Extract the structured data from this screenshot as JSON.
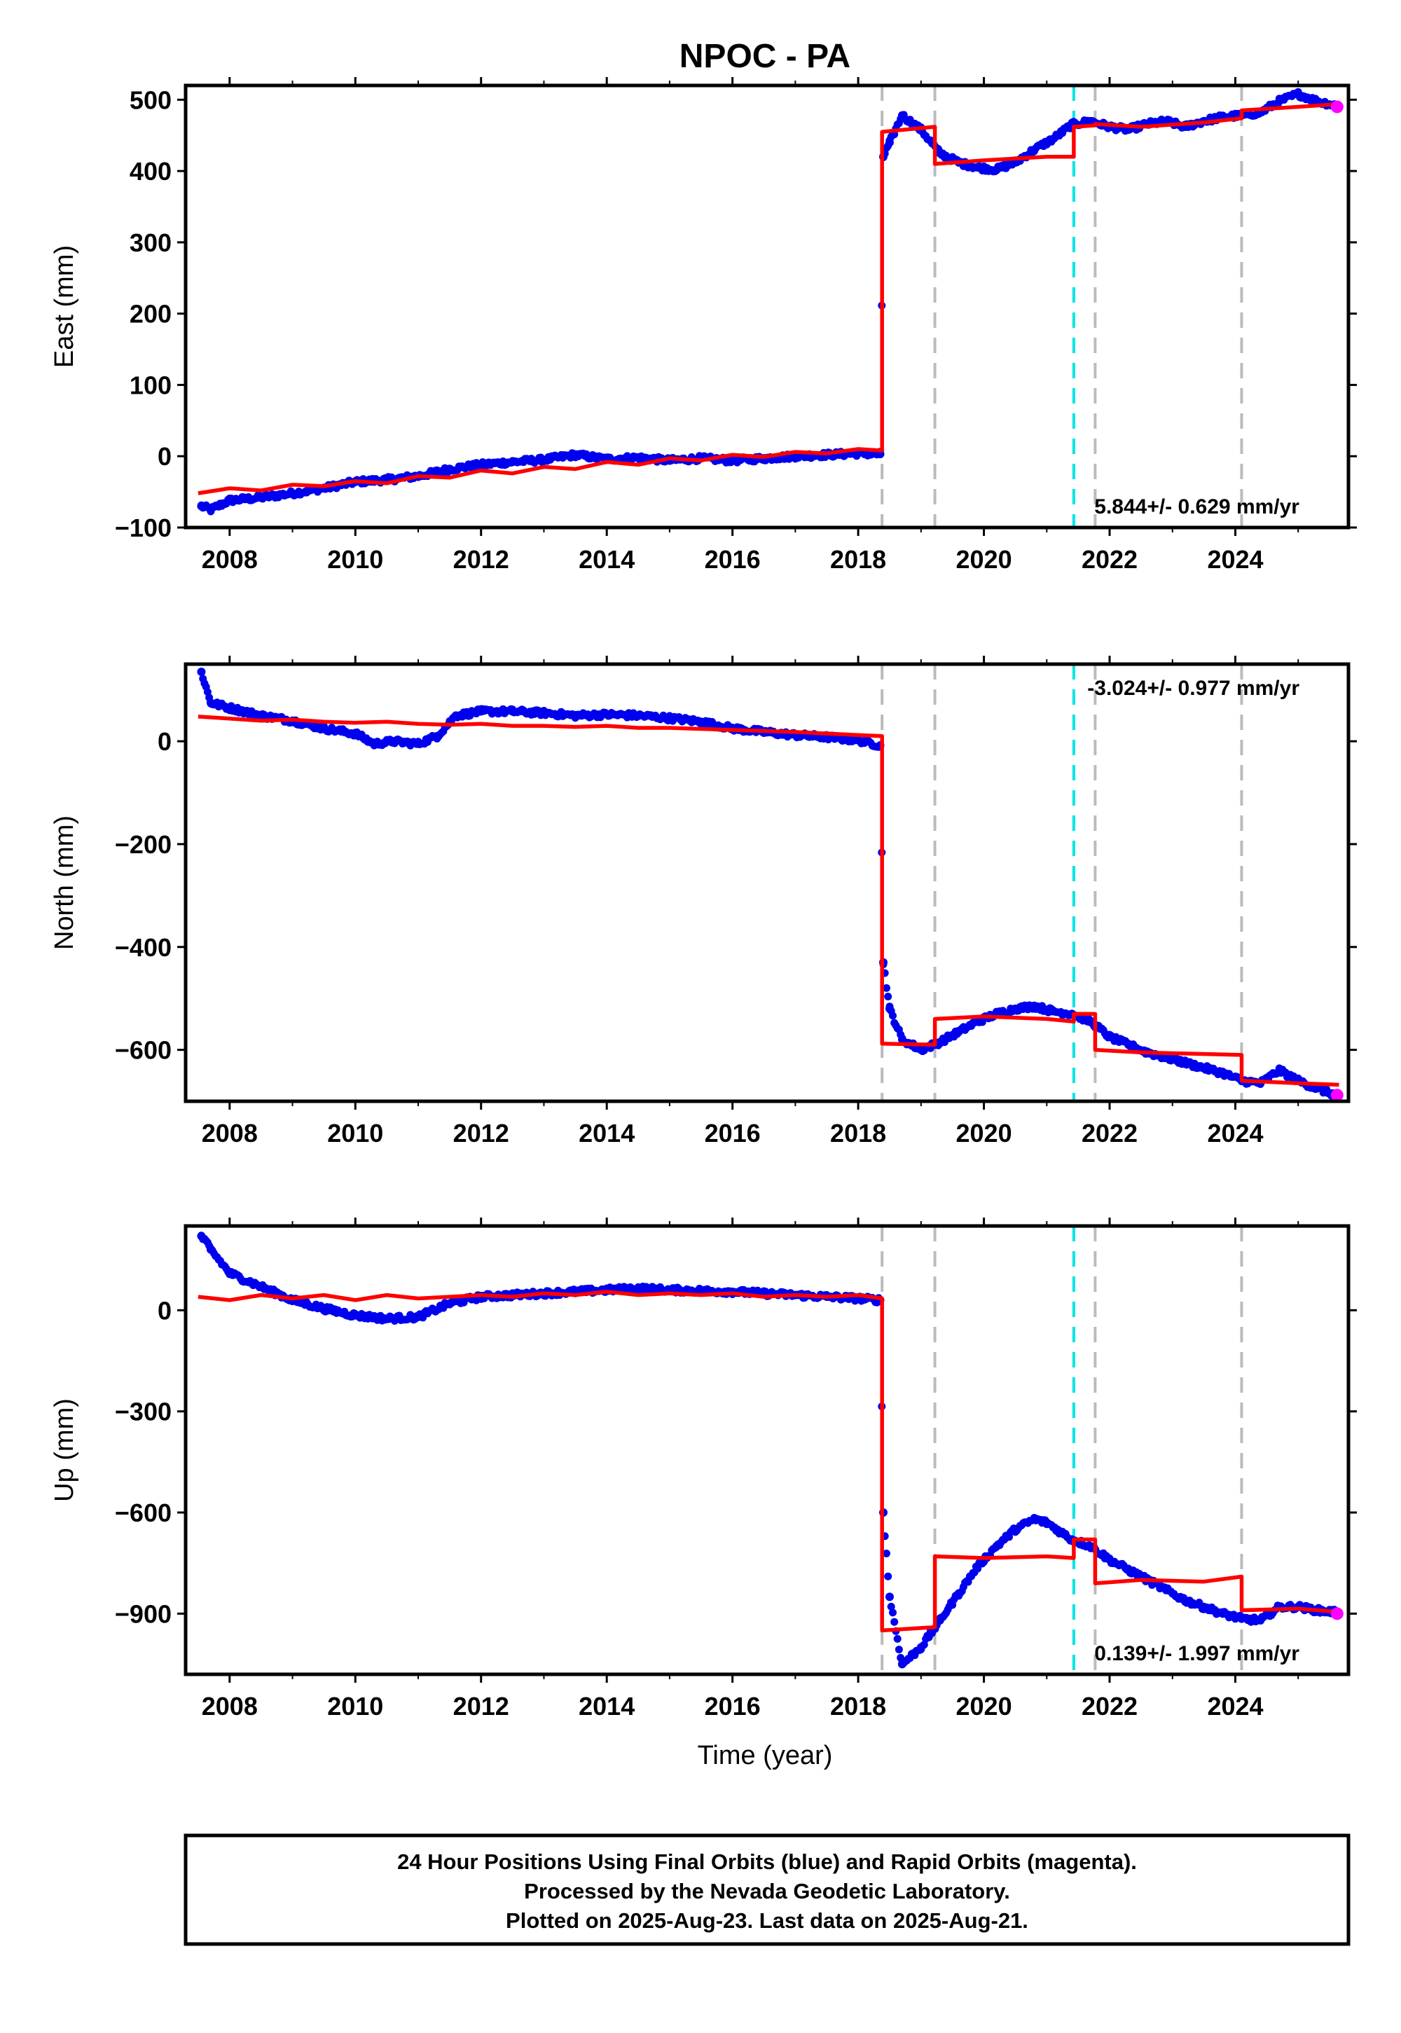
{
  "chart_data": {
    "title": "NPOC - PA",
    "type": "scatter",
    "x_label": "Time (year)",
    "x_ticks": [
      "2008",
      "2010",
      "2012",
      "2014",
      "2016",
      "2018",
      "2020",
      "2022",
      "2024"
    ],
    "x_tick_values": [
      2008,
      2010,
      2012,
      2014,
      2016,
      2018,
      2020,
      2022,
      2024
    ],
    "xlim": [
      2007.3,
      2025.8
    ],
    "event_lines": {
      "gray_dashed": [
        2018.38,
        2019.22,
        2021.77,
        2024.1
      ],
      "cyan_dashed": [
        2021.43
      ]
    },
    "colors": {
      "final_orbits": "#0000ee",
      "rapid_orbits": "#ff00ff",
      "model": "#ff0000",
      "equipment_change": "#bbbbbb",
      "earthquake": "#00e5e5"
    },
    "panels": [
      {
        "ylabel": "East (mm)",
        "ylim": [
          -100,
          520
        ],
        "y_tick_values": [
          -100,
          0,
          100,
          200,
          300,
          400,
          500
        ],
        "y_ticks": [
          "−100",
          "0",
          "100",
          "200",
          "300",
          "400",
          "500"
        ],
        "rate_text": "5.844+/- 0.629 mm/yr",
        "rate_position": "bottom-right",
        "final_orbits": {
          "x": [
            2007.55,
            2007.7,
            2008.0,
            2008.5,
            2009.0,
            2009.5,
            2010.0,
            2010.5,
            2011.0,
            2011.5,
            2012.0,
            2012.5,
            2013.0,
            2013.5,
            2014.0,
            2014.5,
            2015.0,
            2015.5,
            2016.0,
            2016.5,
            2017.0,
            2017.5,
            2018.0,
            2018.35,
            2018.4,
            2018.5,
            2018.7,
            2019.0,
            2019.3,
            2019.6,
            2019.9,
            2020.2,
            2020.5,
            2020.8,
            2021.1,
            2021.4,
            2021.7,
            2022.0,
            2022.3,
            2022.6,
            2022.9,
            2023.2,
            2023.5,
            2023.8,
            2024.1,
            2024.4,
            2024.7,
            2025.0,
            2025.3,
            2025.6
          ],
          "y": [
            -70,
            -75,
            -62,
            -58,
            -52,
            -45,
            -36,
            -33,
            -28,
            -18,
            -12,
            -8,
            -5,
            2,
            -4,
            -2,
            -6,
            -3,
            -6,
            -3,
            0,
            2,
            4,
            3,
            420,
            440,
            478,
            458,
            425,
            412,
            405,
            402,
            412,
            430,
            445,
            465,
            470,
            462,
            458,
            466,
            470,
            462,
            470,
            476,
            478,
            482,
            498,
            508,
            498,
            492
          ]
        },
        "rapid_orbits": {
          "x": [
            2025.62
          ],
          "y": [
            490
          ]
        },
        "model": {
          "x": [
            2007.5,
            2008.0,
            2008.5,
            2009.0,
            2009.5,
            2010.0,
            2010.5,
            2011.0,
            2011.5,
            2012.0,
            2012.5,
            2013.0,
            2013.5,
            2014.0,
            2014.5,
            2015.0,
            2015.5,
            2016.0,
            2016.5,
            2017.0,
            2017.5,
            2018.0,
            2018.38,
            2018.38,
            2019.22,
            2019.22,
            2020.0,
            2021.0,
            2021.43,
            2021.43,
            2021.77,
            2021.77,
            2022.5,
            2023.5,
            2024.1,
            2024.1,
            2025.0,
            2025.65
          ],
          "y": [
            -52,
            -45,
            -48,
            -40,
            -42,
            -35,
            -38,
            -28,
            -30,
            -20,
            -24,
            -15,
            -18,
            -8,
            -12,
            -3,
            -6,
            2,
            -1,
            6,
            4,
            10,
            8,
            455,
            462,
            410,
            415,
            420,
            420,
            462,
            464,
            466,
            462,
            468,
            474,
            485,
            490,
            494
          ]
        }
      },
      {
        "ylabel": "North (mm)",
        "ylim": [
          -700,
          150
        ],
        "y_tick_values": [
          -600,
          -400,
          -200,
          0
        ],
        "y_ticks": [
          "−600",
          "−400",
          "−200",
          "0"
        ],
        "rate_text": "-3.024+/- 0.977 mm/yr",
        "rate_position": "top-right",
        "final_orbits": {
          "x": [
            2007.55,
            2007.7,
            2008.0,
            2008.5,
            2009.0,
            2009.5,
            2010.0,
            2010.3,
            2010.6,
            2011.0,
            2011.3,
            2011.6,
            2012.0,
            2012.5,
            2013.0,
            2013.5,
            2014.0,
            2014.5,
            2015.0,
            2015.5,
            2016.0,
            2016.5,
            2017.0,
            2017.5,
            2018.0,
            2018.35,
            2018.4,
            2018.5,
            2018.7,
            2019.0,
            2019.3,
            2019.6,
            2019.9,
            2020.2,
            2020.5,
            2020.8,
            2021.1,
            2021.4,
            2021.7,
            2022.0,
            2022.3,
            2022.6,
            2022.9,
            2023.2,
            2023.5,
            2023.8,
            2024.1,
            2024.4,
            2024.7,
            2025.0,
            2025.3,
            2025.6
          ],
          "y": [
            135,
            75,
            65,
            50,
            40,
            25,
            15,
            -5,
            0,
            -5,
            10,
            50,
            58,
            58,
            55,
            50,
            52,
            50,
            45,
            38,
            25,
            18,
            12,
            8,
            2,
            -8,
            -430,
            -520,
            -580,
            -600,
            -585,
            -565,
            -545,
            -530,
            -520,
            -515,
            -525,
            -530,
            -545,
            -575,
            -590,
            -605,
            -615,
            -625,
            -635,
            -645,
            -660,
            -665,
            -640,
            -660,
            -675,
            -688
          ]
        },
        "rapid_orbits": {
          "x": [
            2025.62
          ],
          "y": [
            -688
          ]
        },
        "model": {
          "x": [
            2007.5,
            2008.0,
            2008.5,
            2009.0,
            2009.5,
            2010.0,
            2010.5,
            2011.0,
            2011.5,
            2012.0,
            2012.5,
            2013.0,
            2013.5,
            2014.0,
            2014.5,
            2015.0,
            2015.5,
            2016.0,
            2016.5,
            2017.0,
            2017.5,
            2018.0,
            2018.38,
            2018.38,
            2019.22,
            2019.22,
            2020.0,
            2021.0,
            2021.43,
            2021.43,
            2021.77,
            2021.77,
            2022.5,
            2023.5,
            2024.1,
            2024.1,
            2025.0,
            2025.65
          ],
          "y": [
            48,
            44,
            40,
            42,
            38,
            36,
            38,
            34,
            32,
            34,
            30,
            30,
            28,
            30,
            26,
            26,
            24,
            22,
            20,
            18,
            15,
            12,
            10,
            -588,
            -590,
            -540,
            -535,
            -540,
            -545,
            -530,
            -530,
            -600,
            -605,
            -608,
            -610,
            -660,
            -665,
            -668
          ]
        }
      },
      {
        "ylabel": "Up (mm)",
        "ylim": [
          -1080,
          250
        ],
        "y_tick_values": [
          -900,
          -600,
          -300,
          0
        ],
        "y_ticks": [
          "−900",
          "−600",
          "−300",
          "0"
        ],
        "rate_text": "0.139+/- 1.997 mm/yr",
        "rate_position": "bottom-right",
        "final_orbits": {
          "x": [
            2007.55,
            2007.7,
            2008.0,
            2008.5,
            2009.0,
            2009.5,
            2010.0,
            2010.5,
            2011.0,
            2011.5,
            2012.0,
            2012.5,
            2013.0,
            2013.5,
            2014.0,
            2014.5,
            2015.0,
            2015.5,
            2016.0,
            2016.5,
            2017.0,
            2017.5,
            2018.0,
            2018.35,
            2018.4,
            2018.5,
            2018.7,
            2019.0,
            2019.3,
            2019.6,
            2019.9,
            2020.2,
            2020.5,
            2020.8,
            2021.0,
            2021.4,
            2021.7,
            2022.0,
            2022.3,
            2022.6,
            2022.9,
            2023.2,
            2023.5,
            2023.8,
            2024.1,
            2024.4,
            2024.7,
            2025.0,
            2025.3,
            2025.6
          ],
          "y": [
            220,
            180,
            110,
            70,
            30,
            5,
            -15,
            -25,
            -20,
            20,
            40,
            45,
            50,
            55,
            60,
            65,
            60,
            58,
            55,
            50,
            45,
            40,
            35,
            30,
            -600,
            -850,
            -1050,
            -1000,
            -920,
            -840,
            -760,
            -700,
            -650,
            -620,
            -630,
            -680,
            -700,
            -740,
            -770,
            -800,
            -830,
            -860,
            -880,
            -900,
            -915,
            -920,
            -880,
            -880,
            -890,
            -895
          ]
        },
        "rapid_orbits": {
          "x": [
            2025.62
          ],
          "y": [
            -900
          ]
        },
        "model": {
          "x": [
            2007.5,
            2008.0,
            2008.5,
            2009.0,
            2009.5,
            2010.0,
            2010.5,
            2011.0,
            2011.5,
            2012.0,
            2012.5,
            2013.0,
            2013.5,
            2014.0,
            2014.5,
            2015.0,
            2015.5,
            2016.0,
            2016.5,
            2017.0,
            2017.5,
            2018.0,
            2018.38,
            2018.38,
            2019.22,
            2019.22,
            2020.0,
            2021.0,
            2021.43,
            2021.43,
            2021.77,
            2021.77,
            2022.5,
            2023.5,
            2024.1,
            2024.1,
            2025.0,
            2025.65
          ],
          "y": [
            40,
            30,
            45,
            35,
            45,
            30,
            45,
            35,
            40,
            45,
            40,
            50,
            45,
            55,
            45,
            50,
            45,
            50,
            40,
            45,
            40,
            45,
            35,
            -950,
            -940,
            -730,
            -735,
            -730,
            -735,
            -680,
            -680,
            -810,
            -800,
            -805,
            -790,
            -890,
            -885,
            -895
          ]
        }
      }
    ]
  },
  "footer": {
    "line1": "24 Hour Positions Using Final Orbits (blue) and Rapid Orbits (magenta).",
    "line2": "Processed by the Nevada Geodetic Laboratory.",
    "line3": "Plotted on 2025-Aug-23. Last data on 2025-Aug-21."
  }
}
